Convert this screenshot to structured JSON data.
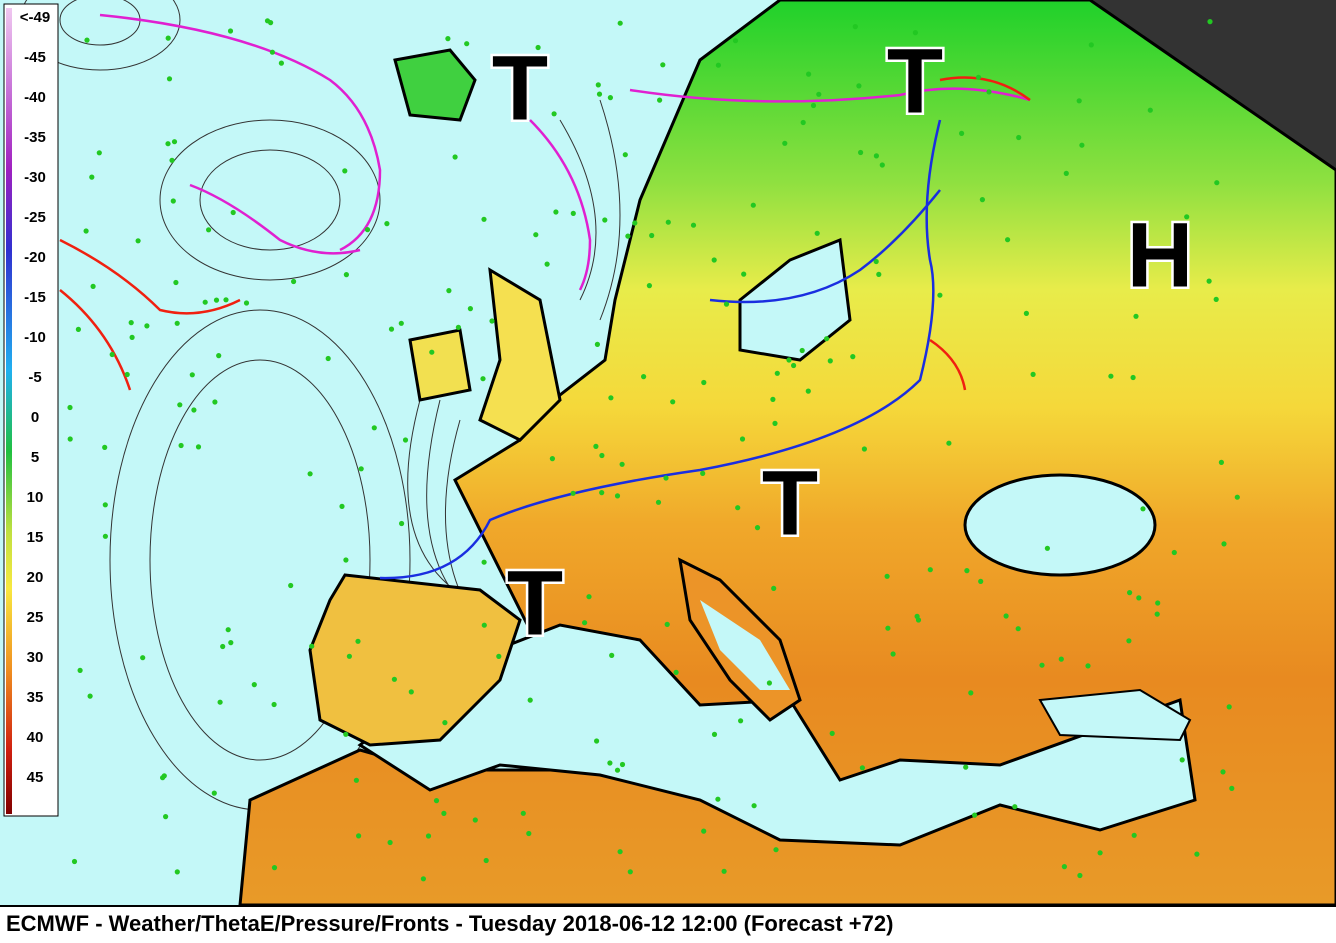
{
  "colorbar": {
    "labels": [
      "<-49",
      "-45",
      "-40",
      "-35",
      "-30",
      "-25",
      "-20",
      "-15",
      "-10",
      "-5",
      "0",
      "5",
      "10",
      "15",
      "20",
      "25",
      "30",
      "35",
      "40",
      "45"
    ]
  },
  "pressure_centers": [
    "T",
    "T",
    "H",
    "T",
    "T"
  ],
  "footer": {
    "title": "ECMWF - Weather/ThetaE/Pressure/Fronts - Tuesday 2018-06-12 12:00 (Forecast +72)"
  }
}
